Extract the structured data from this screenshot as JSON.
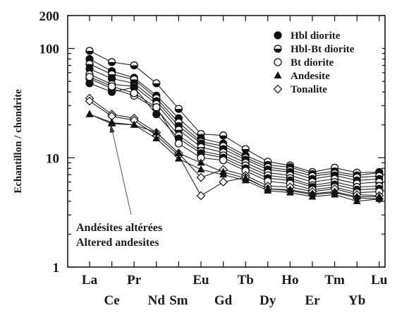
{
  "chart_data": {
    "type": "line",
    "yscale": "log",
    "ylim": [
      1,
      200
    ],
    "ylabel": "Echantillon / chondrite",
    "y_ticks": [
      "1",
      "10",
      "100",
      "200"
    ],
    "x_ticks_upper": [
      "La",
      "Pr",
      "Eu",
      "Tb",
      "Ho",
      "Tm",
      "Lu"
    ],
    "x_ticks_lower": [
      "Ce",
      "Nd",
      "Sm",
      "Gd",
      "Dy",
      "Er",
      "Yb"
    ],
    "x": [
      "La",
      "Ce",
      "Pr",
      "Nd",
      "Sm",
      "Eu",
      "Gd",
      "Tb",
      "Dy",
      "Ho",
      "Er",
      "Tm",
      "Yb",
      "Lu"
    ],
    "legend": [
      {
        "label": "Hbl diorite",
        "marker": "filled-circle"
      },
      {
        "label": "Hbl-Bt diorite",
        "marker": "half-circle"
      },
      {
        "label": "Bt diorite",
        "marker": "open-circle"
      },
      {
        "label": "Andesite",
        "marker": "filled-triangle"
      },
      {
        "label": "Tonalite",
        "marker": "open-diamond"
      }
    ],
    "series": [
      {
        "group": "Hbl-Bt diorite",
        "marker": "half-circle",
        "values": [
          95,
          75,
          70,
          48,
          28,
          16.5,
          16,
          12,
          9.2,
          8.5,
          7.4,
          8.1,
          7.3,
          7.4
        ]
      },
      {
        "group": "Hbl diorite",
        "marker": "filled-circle",
        "values": [
          80,
          62,
          54,
          37,
          23,
          15,
          13.5,
          10.5,
          8.6,
          8.2,
          7.1,
          7.5,
          6.9,
          7.3
        ]
      },
      {
        "group": "Hbl-Bt diorite",
        "marker": "half-circle",
        "values": [
          72,
          58,
          52,
          35,
          21,
          14,
          12.8,
          10,
          8.2,
          7.7,
          6.8,
          7.2,
          6.6,
          6.8
        ]
      },
      {
        "group": "Hbl diorite",
        "marker": "filled-circle",
        "values": [
          65,
          53,
          48,
          33,
          19.5,
          13.5,
          12,
          9.6,
          7.8,
          7.4,
          6.4,
          6.9,
          6.2,
          6.4
        ]
      },
      {
        "group": "Hbl-Bt diorite",
        "marker": "half-circle",
        "values": [
          58,
          47,
          45,
          31,
          18,
          12.5,
          11.2,
          9,
          7.3,
          6.9,
          6,
          6.4,
          5.8,
          6
        ]
      },
      {
        "group": "Bt diorite",
        "marker": "open-circle",
        "values": [
          53,
          43,
          37,
          28,
          16,
          11.5,
          10.5,
          8.5,
          6.9,
          6.5,
          5.6,
          6,
          5.4,
          5.5
        ]
      },
      {
        "group": "Hbl diorite",
        "marker": "filled-circle",
        "values": [
          48,
          40,
          44,
          25,
          15,
          11,
          10,
          8,
          6.5,
          6.2,
          5.4,
          5.7,
          5.1,
          5.2
        ]
      },
      {
        "group": "Bt diorite",
        "marker": "open-circle",
        "values": [
          55,
          45,
          39,
          29,
          13.5,
          10,
          9.5,
          7.6,
          6.1,
          5.8,
          5.1,
          5.4,
          4.8,
          4.9
        ]
      },
      {
        "group": "Tonalite",
        "marker": "open-diamond",
        "values": [
          35,
          25,
          23,
          17,
          11,
          6.6,
          7.8,
          6.9,
          5.5,
          5.4,
          4.9,
          5.2,
          4.6,
          4.5
        ]
      },
      {
        "group": "Tonalite",
        "marker": "open-diamond",
        "values": [
          33,
          24,
          22,
          16,
          10.5,
          4.5,
          6,
          6.6,
          5.2,
          5,
          4.6,
          4.8,
          4.3,
          4.2
        ]
      },
      {
        "group": "Andesite",
        "marker": "filled-triangle",
        "values": [
          25,
          21,
          20,
          17,
          11,
          9,
          7.4,
          6.5,
          5.2,
          5.1,
          4.7,
          4.9,
          4.4,
          4.4
        ]
      },
      {
        "group": "Andesite",
        "marker": "filled-triangle",
        "values": [
          25,
          20.5,
          20,
          15,
          9.8,
          7.8,
          7,
          6.2,
          5,
          4.8,
          4.4,
          4.6,
          4,
          4.2
        ]
      }
    ],
    "annotation": {
      "lines": [
        "Andésites altérées",
        "Altered andesites"
      ],
      "points_to": {
        "x": "Ce",
        "y": 20.5
      }
    },
    "grid": false,
    "legend_position": "top-right"
  }
}
